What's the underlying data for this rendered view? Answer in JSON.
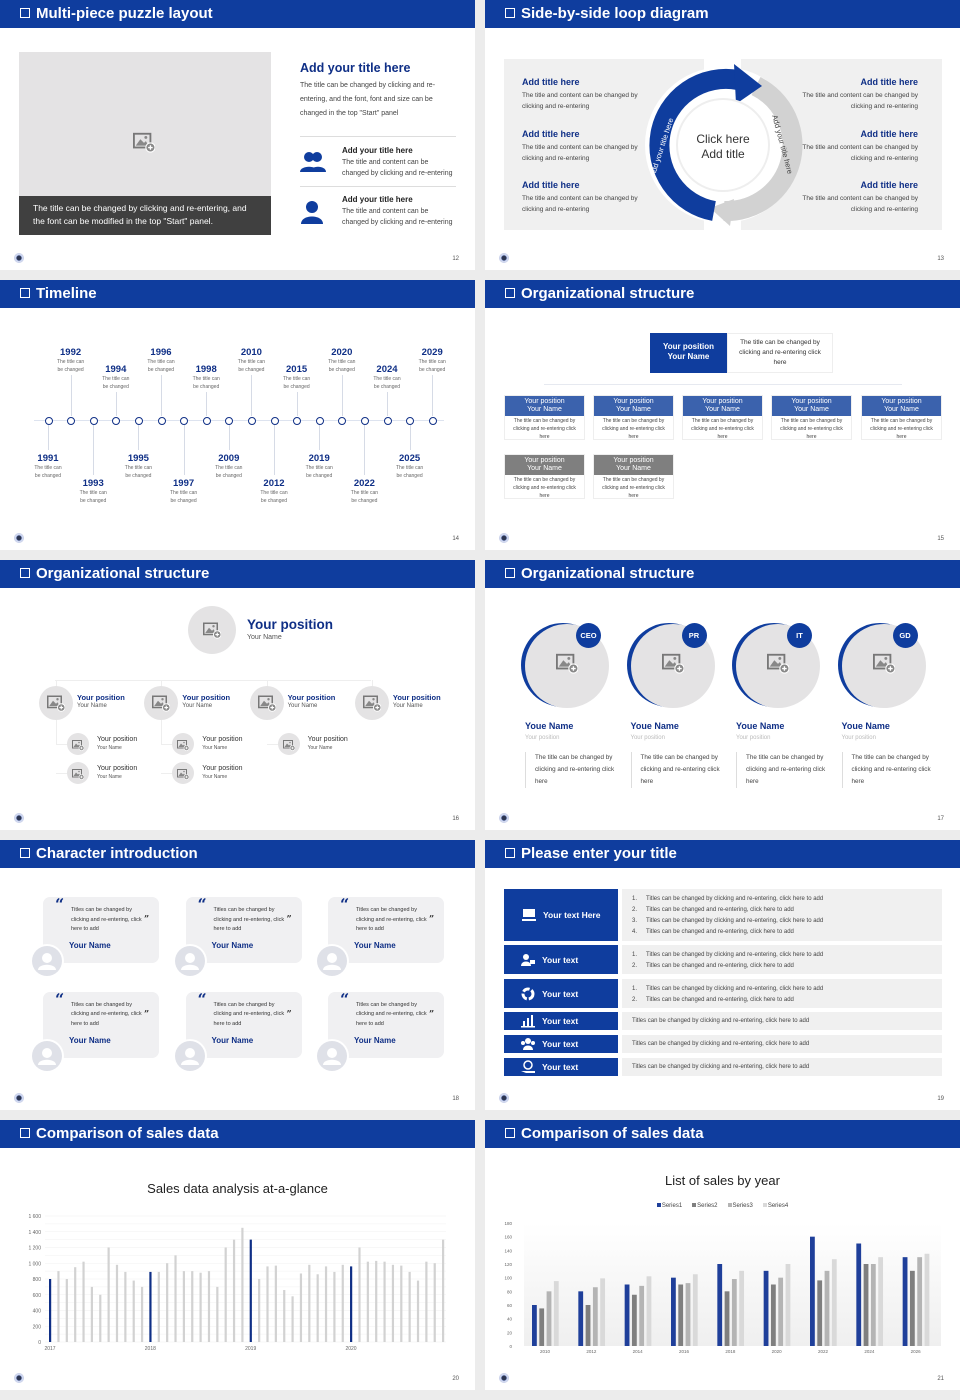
{
  "colors": {
    "header": "#0f3d9e",
    "navy": "#0f2f86",
    "series1": "#1f3f9a",
    "series2": "#7f7f7f",
    "series3": "#b4b4b4",
    "series4": "#d9d9d9"
  },
  "slides": [
    {
      "title": "Multi-piece puzzle layout",
      "page": "12",
      "image_icon": "image-add-icon",
      "caption": "The title can be changed by clicking and re-entering, and the font can be modified in the top \"Start\" panel.",
      "heading": "Add your title here",
      "paragraph": "The title can be changed by clicking and re-entering, and the font, font and size can be changed in the top \"Start\" panel",
      "items": [
        {
          "icon": "users-icon",
          "title": "Add your title here",
          "text": "The title and content can be changed by clicking and re-entering"
        },
        {
          "icon": "user-icon",
          "title": "Add your title here",
          "text": "The title and content can be changed by clicking and re-entering"
        }
      ]
    },
    {
      "title": "Side-by-side loop diagram",
      "page": "13",
      "center": [
        "Click here",
        "Add title"
      ],
      "arc_left": "Add your title here",
      "arc_right": "Add your title here",
      "left": [
        {
          "title": "Add title here",
          "text": "The title and content can be changed by clicking and re-entering"
        },
        {
          "title": "Add title here",
          "text": "The title and content can be changed by clicking and re-entering"
        },
        {
          "title": "Add title here",
          "text": "The title and content can be changed by clicking and re-entering"
        }
      ],
      "right": [
        {
          "title": "Add title here",
          "text": "The title and content can be changed by clicking and re-entering"
        },
        {
          "title": "Add title here",
          "text": "The title and content can be changed by clicking and re-entering"
        },
        {
          "title": "Add title here",
          "text": "The title and content can be changed by clicking and re-entering"
        }
      ]
    },
    {
      "title": "Timeline",
      "page": "14",
      "events": [
        {
          "year": "1991",
          "text": "The title can be changed",
          "side": "down",
          "level": "near"
        },
        {
          "year": "1992",
          "text": "The title can be changed",
          "side": "up",
          "level": "far"
        },
        {
          "year": "1993",
          "text": "The title can be changed",
          "side": "down",
          "level": "far"
        },
        {
          "year": "1994",
          "text": "The title can be changed",
          "side": "up",
          "level": "near"
        },
        {
          "year": "1995",
          "text": "The title can be changed",
          "side": "down",
          "level": "near"
        },
        {
          "year": "1996",
          "text": "The title can be changed",
          "side": "up",
          "level": "far"
        },
        {
          "year": "1997",
          "text": "The title can be changed",
          "side": "down",
          "level": "far"
        },
        {
          "year": "1998",
          "text": "The title can be changed",
          "side": "up",
          "level": "near"
        },
        {
          "year": "2009",
          "text": "The title can be changed",
          "side": "down",
          "level": "near"
        },
        {
          "year": "2010",
          "text": "The title can be changed",
          "side": "up",
          "level": "far"
        },
        {
          "year": "2012",
          "text": "The title can be changed",
          "side": "down",
          "level": "far"
        },
        {
          "year": "2015",
          "text": "The title can be changed",
          "side": "up",
          "level": "near"
        },
        {
          "year": "2019",
          "text": "The title can be changed",
          "side": "down",
          "level": "near"
        },
        {
          "year": "2020",
          "text": "The title can be changed",
          "side": "up",
          "level": "far"
        },
        {
          "year": "2022",
          "text": "The title can be changed",
          "side": "down",
          "level": "far"
        },
        {
          "year": "2024",
          "text": "The title can be changed",
          "side": "up",
          "level": "near"
        },
        {
          "year": "2025",
          "text": "The title can be changed",
          "side": "down",
          "level": "near"
        },
        {
          "year": "2029",
          "text": "The title can be changed",
          "side": "up",
          "level": "far"
        }
      ]
    },
    {
      "title": "Organizational structure",
      "page": "15",
      "top": {
        "position": "Your position",
        "name": "Your Name",
        "text": "The title can be changed by clicking and re-entering click here"
      },
      "row1": [
        {
          "position": "Your position",
          "name": "Your Name",
          "text": "The title can be changed by clicking and re-entering click here"
        },
        {
          "position": "Your position",
          "name": "Your Name",
          "text": "The title can be changed by clicking and re-entering click here"
        },
        {
          "position": "Your position",
          "name": "Your Name",
          "text": "The title can be changed by clicking and re-entering click here"
        },
        {
          "position": "Your position",
          "name": "Your Name",
          "text": "The title can be changed by clicking and re-entering click here"
        },
        {
          "position": "Your position",
          "name": "Your Name",
          "text": "The title can be changed by clicking and re-entering click here"
        }
      ],
      "row2": [
        {
          "position": "Your position",
          "name": "Your Name",
          "text": "The title can be changed by clicking and re-entering click here"
        },
        {
          "position": "Your position",
          "name": "Your Name",
          "text": "The title can be changed by clicking and re-entering click here"
        }
      ]
    },
    {
      "title": "Organizational structure",
      "page": "16",
      "top": {
        "position": "Your position",
        "name": "Your Name"
      },
      "branches": [
        {
          "position": "Your position",
          "name": "Your Name",
          "children": [
            {
              "position": "Your position",
              "name": "Your Name"
            },
            {
              "position": "Your position",
              "name": "Your Name"
            }
          ]
        },
        {
          "position": "Your position",
          "name": "Your Name",
          "children": [
            {
              "position": "Your position",
              "name": "Your Name"
            },
            {
              "position": "Your position",
              "name": "Your Name"
            }
          ]
        },
        {
          "position": "Your position",
          "name": "Your Name",
          "children": [
            {
              "position": "Your position",
              "name": "Your Name"
            }
          ]
        },
        {
          "position": "Your position",
          "name": "Your Name",
          "children": []
        }
      ]
    },
    {
      "title": "Organizational structure",
      "page": "17",
      "members": [
        {
          "badge": "CEO",
          "name": "Youe Name",
          "position": "Your position",
          "text": "The title can be changed by clicking and re-entering click here"
        },
        {
          "badge": "PR",
          "name": "Youe Name",
          "position": "Your position",
          "text": "The title can be changed by clicking and re-entering click here"
        },
        {
          "badge": "IT",
          "name": "Youe Name",
          "position": "Your position",
          "text": "The title can be changed by clicking and re-entering click here"
        },
        {
          "badge": "GD",
          "name": "Youe Name",
          "position": "Your position",
          "text": "The title can be changed by clicking and re-entering click here"
        }
      ]
    },
    {
      "title": "Character introduction",
      "page": "18",
      "cards": [
        {
          "quote": "Titles can be changed by clicking and re-entering, click here to add",
          "name": "Your Name"
        },
        {
          "quote": "Titles can be changed by clicking and re-entering, click here to add",
          "name": "Your Name"
        },
        {
          "quote": "Titles can be changed by clicking and re-entering, click here to add",
          "name": "Your Name"
        },
        {
          "quote": "Titles can be changed by clicking and re-entering, click here to add",
          "name": "Your Name"
        },
        {
          "quote": "Titles can be changed by clicking and re-entering, click here to add",
          "name": "Your Name"
        },
        {
          "quote": "Titles can be changed by clicking and re-entering, click here to add",
          "name": "Your Name"
        }
      ]
    },
    {
      "title": "Please enter your title",
      "page": "19",
      "rows": [
        {
          "icon": "presentation-icon",
          "label": "Your text Here",
          "numbered": true,
          "lines": [
            "Titles can be changed by clicking and re-entering, click here to add",
            "Titles can be changed and re-entering, click here to add",
            "Titles can be changed by clicking and re-entering, click here to add",
            "Titles can be changed and re-entering, click here to add"
          ]
        },
        {
          "icon": "user-card-icon",
          "label": "Your text",
          "numbered": true,
          "lines": [
            "Titles can be changed by clicking and re-entering, click here to add",
            "Titles can be changed and re-entering, click here to add"
          ]
        },
        {
          "icon": "cycle-icon",
          "label": "Your text",
          "numbered": true,
          "lines": [
            "Titles can be changed by clicking and re-entering, click here to add",
            "Titles can be changed and re-entering, click here to add"
          ]
        },
        {
          "icon": "bar-chart-icon",
          "label": "Your text",
          "numbered": false,
          "lines": [
            "Titles can be changed by clicking and re-entering, click here to add"
          ]
        },
        {
          "icon": "team-icon",
          "label": "Your text",
          "numbered": false,
          "lines": [
            "Titles can be changed by clicking and re-entering, click here to add"
          ]
        },
        {
          "icon": "hand-money-icon",
          "label": "Your text",
          "numbered": false,
          "lines": [
            "Titles can be changed by clicking and re-entering, click here to add"
          ]
        }
      ]
    },
    {
      "title": "Comparison of sales data",
      "page": "20"
    },
    {
      "title": "Comparison of sales data",
      "page": "21"
    }
  ],
  "chart_data": [
    {
      "type": "bar",
      "title": "Sales data analysis at-a-glance",
      "ylim": [
        0,
        1600
      ],
      "yticks": [
        "0",
        "200",
        "400",
        "600",
        "800",
        "1 000",
        "1 200",
        "1 400",
        "1 600"
      ],
      "x_labels": [
        "2017",
        "2018",
        "2019",
        "2020"
      ],
      "grid": true,
      "values": [
        800,
        900,
        800,
        950,
        1020,
        700,
        600,
        1200,
        980,
        890,
        780,
        700,
        890,
        890,
        1000,
        1100,
        900,
        900,
        880,
        900,
        700,
        1200,
        1300,
        1450,
        1300,
        800,
        960,
        970,
        660,
        580,
        870,
        980,
        860,
        960,
        890,
        980,
        960,
        1200,
        1020,
        1030,
        1020,
        980,
        970,
        890,
        780,
        1020,
        1000,
        1300
      ],
      "highlight_every": 12
    },
    {
      "type": "bar",
      "title": "List of sales by year",
      "ylim": [
        0,
        180
      ],
      "yticks": [
        "0",
        "20",
        "40",
        "60",
        "80",
        "100",
        "120",
        "140",
        "160",
        "180"
      ],
      "legend": "top",
      "categories": [
        "2010",
        "2012",
        "2014",
        "2016",
        "2018",
        "2020",
        "2022",
        "2024",
        "2026"
      ],
      "series": [
        {
          "name": "Series1",
          "values": [
            60,
            80,
            90,
            100,
            120,
            110,
            160,
            150,
            130
          ]
        },
        {
          "name": "Series2",
          "values": [
            55,
            60,
            75,
            90,
            80,
            90,
            96,
            120,
            110
          ]
        },
        {
          "name": "Series3",
          "values": [
            80,
            86,
            88,
            92,
            98,
            100,
            110,
            120,
            130
          ]
        },
        {
          "name": "Series4",
          "values": [
            95,
            99,
            102,
            105,
            110,
            120,
            127,
            130,
            135
          ]
        }
      ]
    }
  ]
}
